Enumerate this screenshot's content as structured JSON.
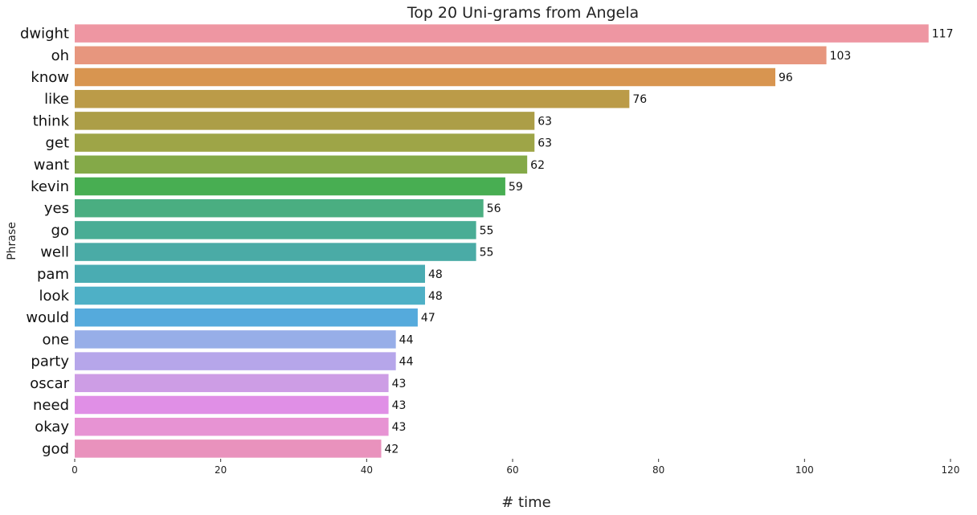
{
  "chart_data": {
    "type": "bar",
    "orientation": "horizontal",
    "title": "Top 20 Uni-grams from Angela",
    "xlabel": "# time",
    "ylabel": "Phrase",
    "xlim": [
      0,
      120
    ],
    "xticks": [
      0,
      20,
      40,
      60,
      80,
      100,
      120
    ],
    "grid": false,
    "legend": "none",
    "categories": [
      "dwight",
      "oh",
      "know",
      "like",
      "think",
      "get",
      "want",
      "kevin",
      "yes",
      "go",
      "well",
      "pam",
      "look",
      "would",
      "one",
      "party",
      "oscar",
      "need",
      "okay",
      "god"
    ],
    "values": [
      117,
      103,
      96,
      76,
      63,
      63,
      62,
      59,
      56,
      55,
      55,
      48,
      48,
      47,
      44,
      44,
      43,
      43,
      43,
      42
    ],
    "colors": [
      "#ee96a2",
      "#e7967e",
      "#d89550",
      "#bb9b48",
      "#ac9e47",
      "#9ea547",
      "#84a948",
      "#48ae52",
      "#4aae81",
      "#49ad95",
      "#4aaba6",
      "#4aacb2",
      "#4eb0c6",
      "#55aadc",
      "#97aee8",
      "#b6a6ea",
      "#cd9de5",
      "#e08fe6",
      "#e793d3",
      "#e992bd"
    ]
  }
}
